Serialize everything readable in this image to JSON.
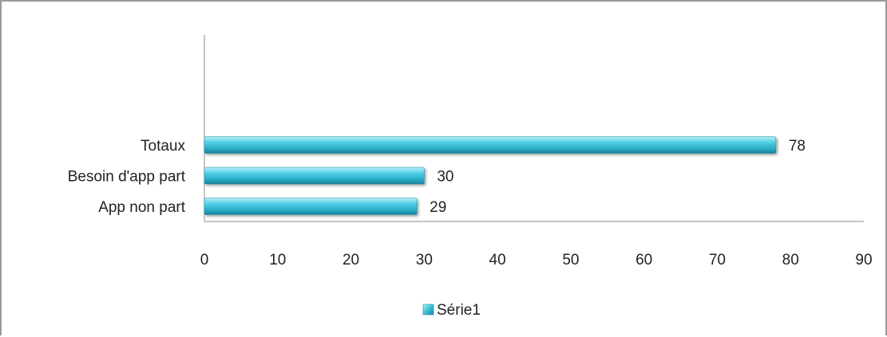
{
  "chart_data": {
    "type": "bar",
    "orientation": "horizontal",
    "categories": [
      "App non part",
      "Besoin d'app part",
      "Totaux"
    ],
    "series": [
      {
        "name": "Série1",
        "values": [
          29,
          30,
          78
        ],
        "color": "#3cc3dc"
      }
    ],
    "xlim": [
      0,
      90
    ],
    "xticks": [
      0,
      10,
      20,
      30,
      40,
      50,
      60,
      70,
      80,
      90
    ],
    "data_labels": true,
    "grid": false,
    "legend": "bottom-center"
  }
}
